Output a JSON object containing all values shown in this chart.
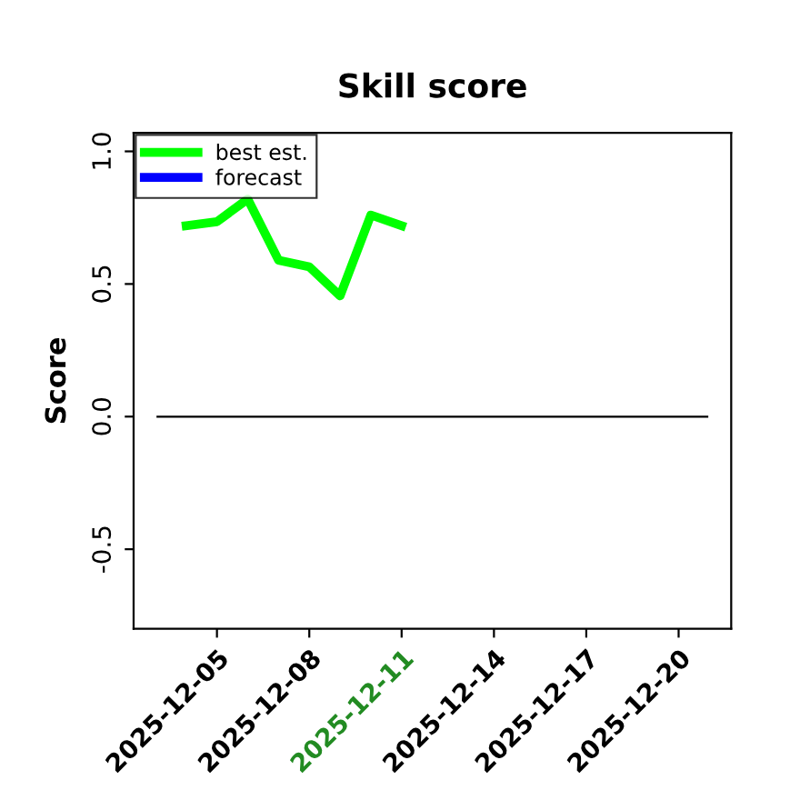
{
  "chart_data": {
    "type": "line",
    "title": "Skill score",
    "ylabel": "Score",
    "x": [
      "2025-12-04",
      "2025-12-05",
      "2025-12-06",
      "2025-12-07",
      "2025-12-08",
      "2025-12-09",
      "2025-12-10",
      "2025-12-11"
    ],
    "series": [
      {
        "name": "best est.",
        "color": "#00ff00",
        "values": [
          0.72,
          0.735,
          0.82,
          0.59,
          0.565,
          0.455,
          0.76,
          0.72
        ]
      },
      {
        "name": "forecast",
        "color": "#0000ff",
        "values": [
          null,
          null,
          null,
          null,
          null,
          null,
          null,
          null
        ]
      }
    ],
    "xlim": [
      "2025-12-02T07:00",
      "2025-12-21T17:00"
    ],
    "xticks": [
      "2025-12-05",
      "2025-12-08",
      "2025-12-11",
      "2025-12-14",
      "2025-12-17",
      "2025-12-20"
    ],
    "ylim": [
      -0.8,
      1.07
    ],
    "yticks": [
      -0.5,
      {
        "value": 0,
        "label": "0.0"
      },
      0.5,
      {
        "value": 1,
        "label": "1.0"
      }
    ],
    "ref_lines": [
      {
        "axis": "y",
        "value": 0,
        "color": "#000000"
      }
    ],
    "legend": "top left",
    "grid": false,
    "line_style": "solid",
    "marker": "none"
  }
}
